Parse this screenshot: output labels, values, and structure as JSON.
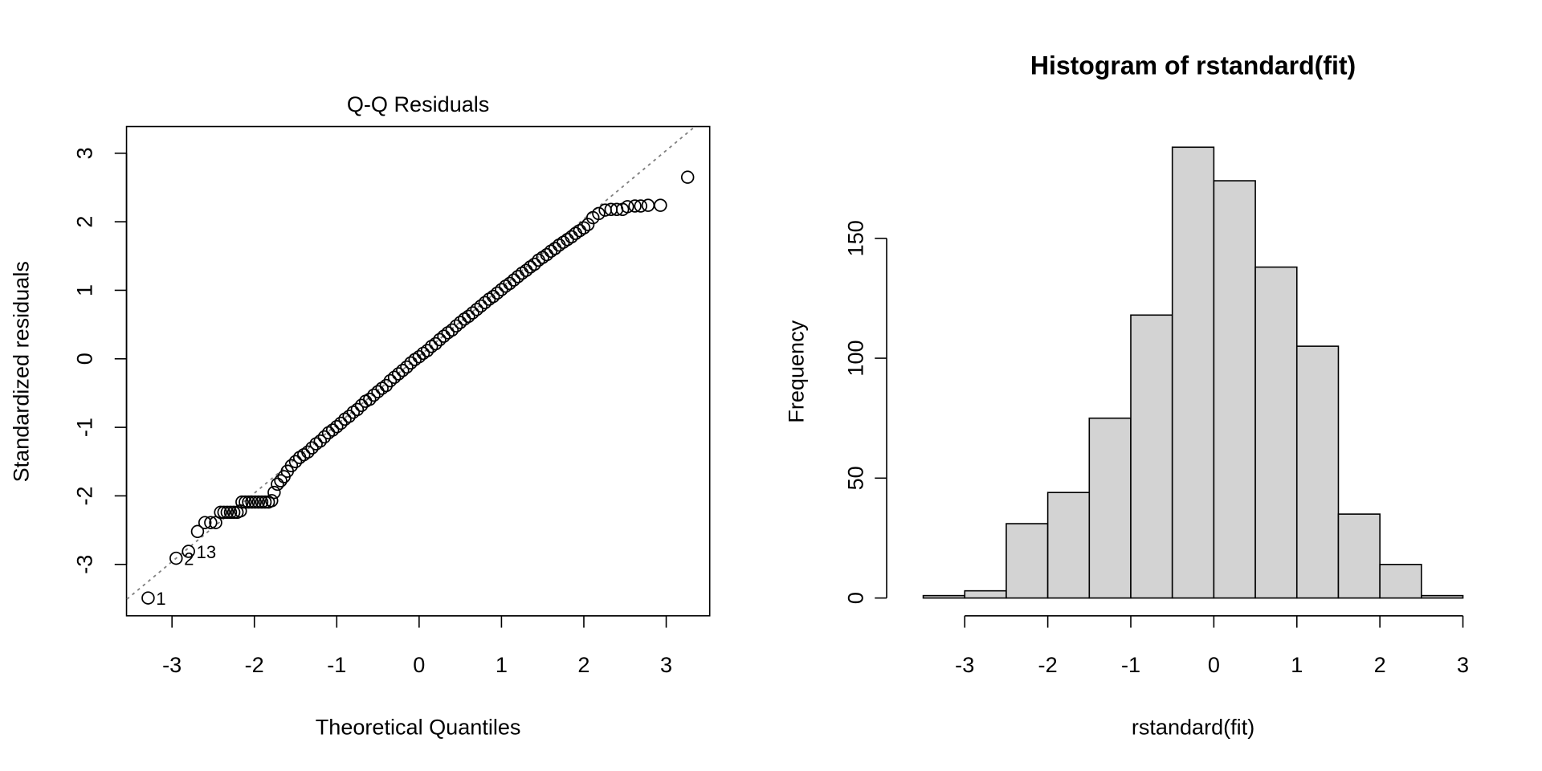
{
  "chart_data": [
    {
      "type": "scatter",
      "title": "Q-Q Residuals",
      "xlabel": "Theoretical Quantiles",
      "ylabel": "Standardized residuals",
      "xlim": [
        -3.55,
        3.55
      ],
      "ylim": [
        -3.9,
        3.4
      ],
      "xticks": [
        -3,
        -2,
        -1,
        0,
        1,
        2,
        3
      ],
      "yticks": [
        -3,
        -2,
        -1,
        0,
        1,
        2,
        3
      ],
      "reference_line": {
        "intercept": 0.04,
        "slope": 1.0,
        "style": "dotted",
        "color": "#808080"
      },
      "labeled_points": [
        {
          "label": "1",
          "x": -3.29,
          "y": -3.49
        },
        {
          "label": "2",
          "x": -2.95,
          "y": -2.91
        },
        {
          "label": "13",
          "x": -2.8,
          "y": -2.81
        }
      ],
      "points": [
        [
          -2.69,
          -2.52
        ],
        [
          -2.6,
          -2.39
        ],
        [
          -2.53,
          -2.39
        ],
        [
          -2.47,
          -2.39
        ],
        [
          -2.41,
          -2.24
        ],
        [
          -2.37,
          -2.24
        ],
        [
          -2.33,
          -2.24
        ],
        [
          -2.29,
          -2.24
        ],
        [
          -2.25,
          -2.24
        ],
        [
          -2.21,
          -2.24
        ],
        [
          -2.17,
          -2.22
        ],
        [
          -2.15,
          -2.09
        ],
        [
          -2.11,
          -2.09
        ],
        [
          -2.07,
          -2.09
        ],
        [
          -2.03,
          -2.09
        ],
        [
          -1.99,
          -2.09
        ],
        [
          -1.95,
          -2.09
        ],
        [
          -1.91,
          -2.09
        ],
        [
          -1.87,
          -2.09
        ],
        [
          -1.83,
          -2.09
        ],
        [
          -1.79,
          -2.07
        ],
        [
          -1.76,
          -1.95
        ],
        [
          -1.72,
          -1.83
        ],
        [
          -1.68,
          -1.78
        ],
        [
          -1.64,
          -1.72
        ],
        [
          -1.6,
          -1.64
        ],
        [
          -1.55,
          -1.56
        ],
        [
          -1.5,
          -1.5
        ],
        [
          -1.45,
          -1.44
        ],
        [
          -1.4,
          -1.4
        ],
        [
          -1.35,
          -1.36
        ],
        [
          -1.3,
          -1.3
        ],
        [
          -1.25,
          -1.24
        ],
        [
          -1.2,
          -1.2
        ],
        [
          -1.15,
          -1.14
        ],
        [
          -1.1,
          -1.08
        ],
        [
          -1.05,
          -1.04
        ],
        [
          -1.0,
          -0.99
        ],
        [
          -0.95,
          -0.94
        ],
        [
          -0.9,
          -0.88
        ],
        [
          -0.85,
          -0.84
        ],
        [
          -0.8,
          -0.78
        ],
        [
          -0.75,
          -0.74
        ],
        [
          -0.7,
          -0.68
        ],
        [
          -0.65,
          -0.62
        ],
        [
          -0.6,
          -0.59
        ],
        [
          -0.55,
          -0.53
        ],
        [
          -0.5,
          -0.48
        ],
        [
          -0.45,
          -0.43
        ],
        [
          -0.4,
          -0.39
        ],
        [
          -0.35,
          -0.32
        ],
        [
          -0.3,
          -0.27
        ],
        [
          -0.25,
          -0.22
        ],
        [
          -0.2,
          -0.17
        ],
        [
          -0.15,
          -0.12
        ],
        [
          -0.1,
          -0.06
        ],
        [
          -0.05,
          -0.01
        ],
        [
          0.0,
          0.03
        ],
        [
          0.05,
          0.08
        ],
        [
          0.1,
          0.12
        ],
        [
          0.15,
          0.18
        ],
        [
          0.2,
          0.22
        ],
        [
          0.25,
          0.28
        ],
        [
          0.3,
          0.33
        ],
        [
          0.35,
          0.38
        ],
        [
          0.4,
          0.42
        ],
        [
          0.45,
          0.48
        ],
        [
          0.5,
          0.53
        ],
        [
          0.55,
          0.58
        ],
        [
          0.6,
          0.62
        ],
        [
          0.65,
          0.67
        ],
        [
          0.7,
          0.72
        ],
        [
          0.75,
          0.77
        ],
        [
          0.8,
          0.82
        ],
        [
          0.85,
          0.87
        ],
        [
          0.9,
          0.91
        ],
        [
          0.95,
          0.96
        ],
        [
          1.0,
          1.01
        ],
        [
          1.05,
          1.06
        ],
        [
          1.1,
          1.1
        ],
        [
          1.15,
          1.15
        ],
        [
          1.2,
          1.2
        ],
        [
          1.25,
          1.25
        ],
        [
          1.3,
          1.29
        ],
        [
          1.35,
          1.34
        ],
        [
          1.4,
          1.38
        ],
        [
          1.45,
          1.44
        ],
        [
          1.5,
          1.48
        ],
        [
          1.55,
          1.52
        ],
        [
          1.6,
          1.57
        ],
        [
          1.65,
          1.61
        ],
        [
          1.7,
          1.66
        ],
        [
          1.75,
          1.7
        ],
        [
          1.8,
          1.74
        ],
        [
          1.85,
          1.78
        ],
        [
          1.9,
          1.83
        ],
        [
          1.95,
          1.87
        ],
        [
          2.0,
          1.91
        ],
        [
          2.05,
          1.96
        ],
        [
          2.11,
          2.06
        ],
        [
          2.18,
          2.12
        ],
        [
          2.26,
          2.17
        ],
        [
          2.33,
          2.18
        ],
        [
          2.4,
          2.18
        ],
        [
          2.47,
          2.18
        ],
        [
          2.53,
          2.22
        ],
        [
          2.62,
          2.23
        ],
        [
          2.69,
          2.23
        ],
        [
          2.78,
          2.24
        ],
        [
          2.93,
          2.24
        ],
        [
          3.26,
          2.65
        ]
      ]
    },
    {
      "type": "bar",
      "title": "Histogram of rstandard(fit)",
      "xlabel": "rstandard(fit)",
      "ylabel": "Frequency",
      "bin_edges": [
        -3.5,
        -3,
        -2.5,
        -2,
        -1.5,
        -1,
        -0.5,
        0,
        0.5,
        1,
        1.5,
        2,
        2.5,
        3
      ],
      "values": [
        1,
        3,
        31,
        44,
        75,
        118,
        188,
        174,
        138,
        105,
        35,
        14,
        1
      ],
      "xticks": [
        -3,
        -2,
        -1,
        0,
        1,
        2,
        3
      ],
      "yticks": [
        0,
        50,
        100,
        150
      ],
      "fill": "#d3d3d3"
    }
  ]
}
